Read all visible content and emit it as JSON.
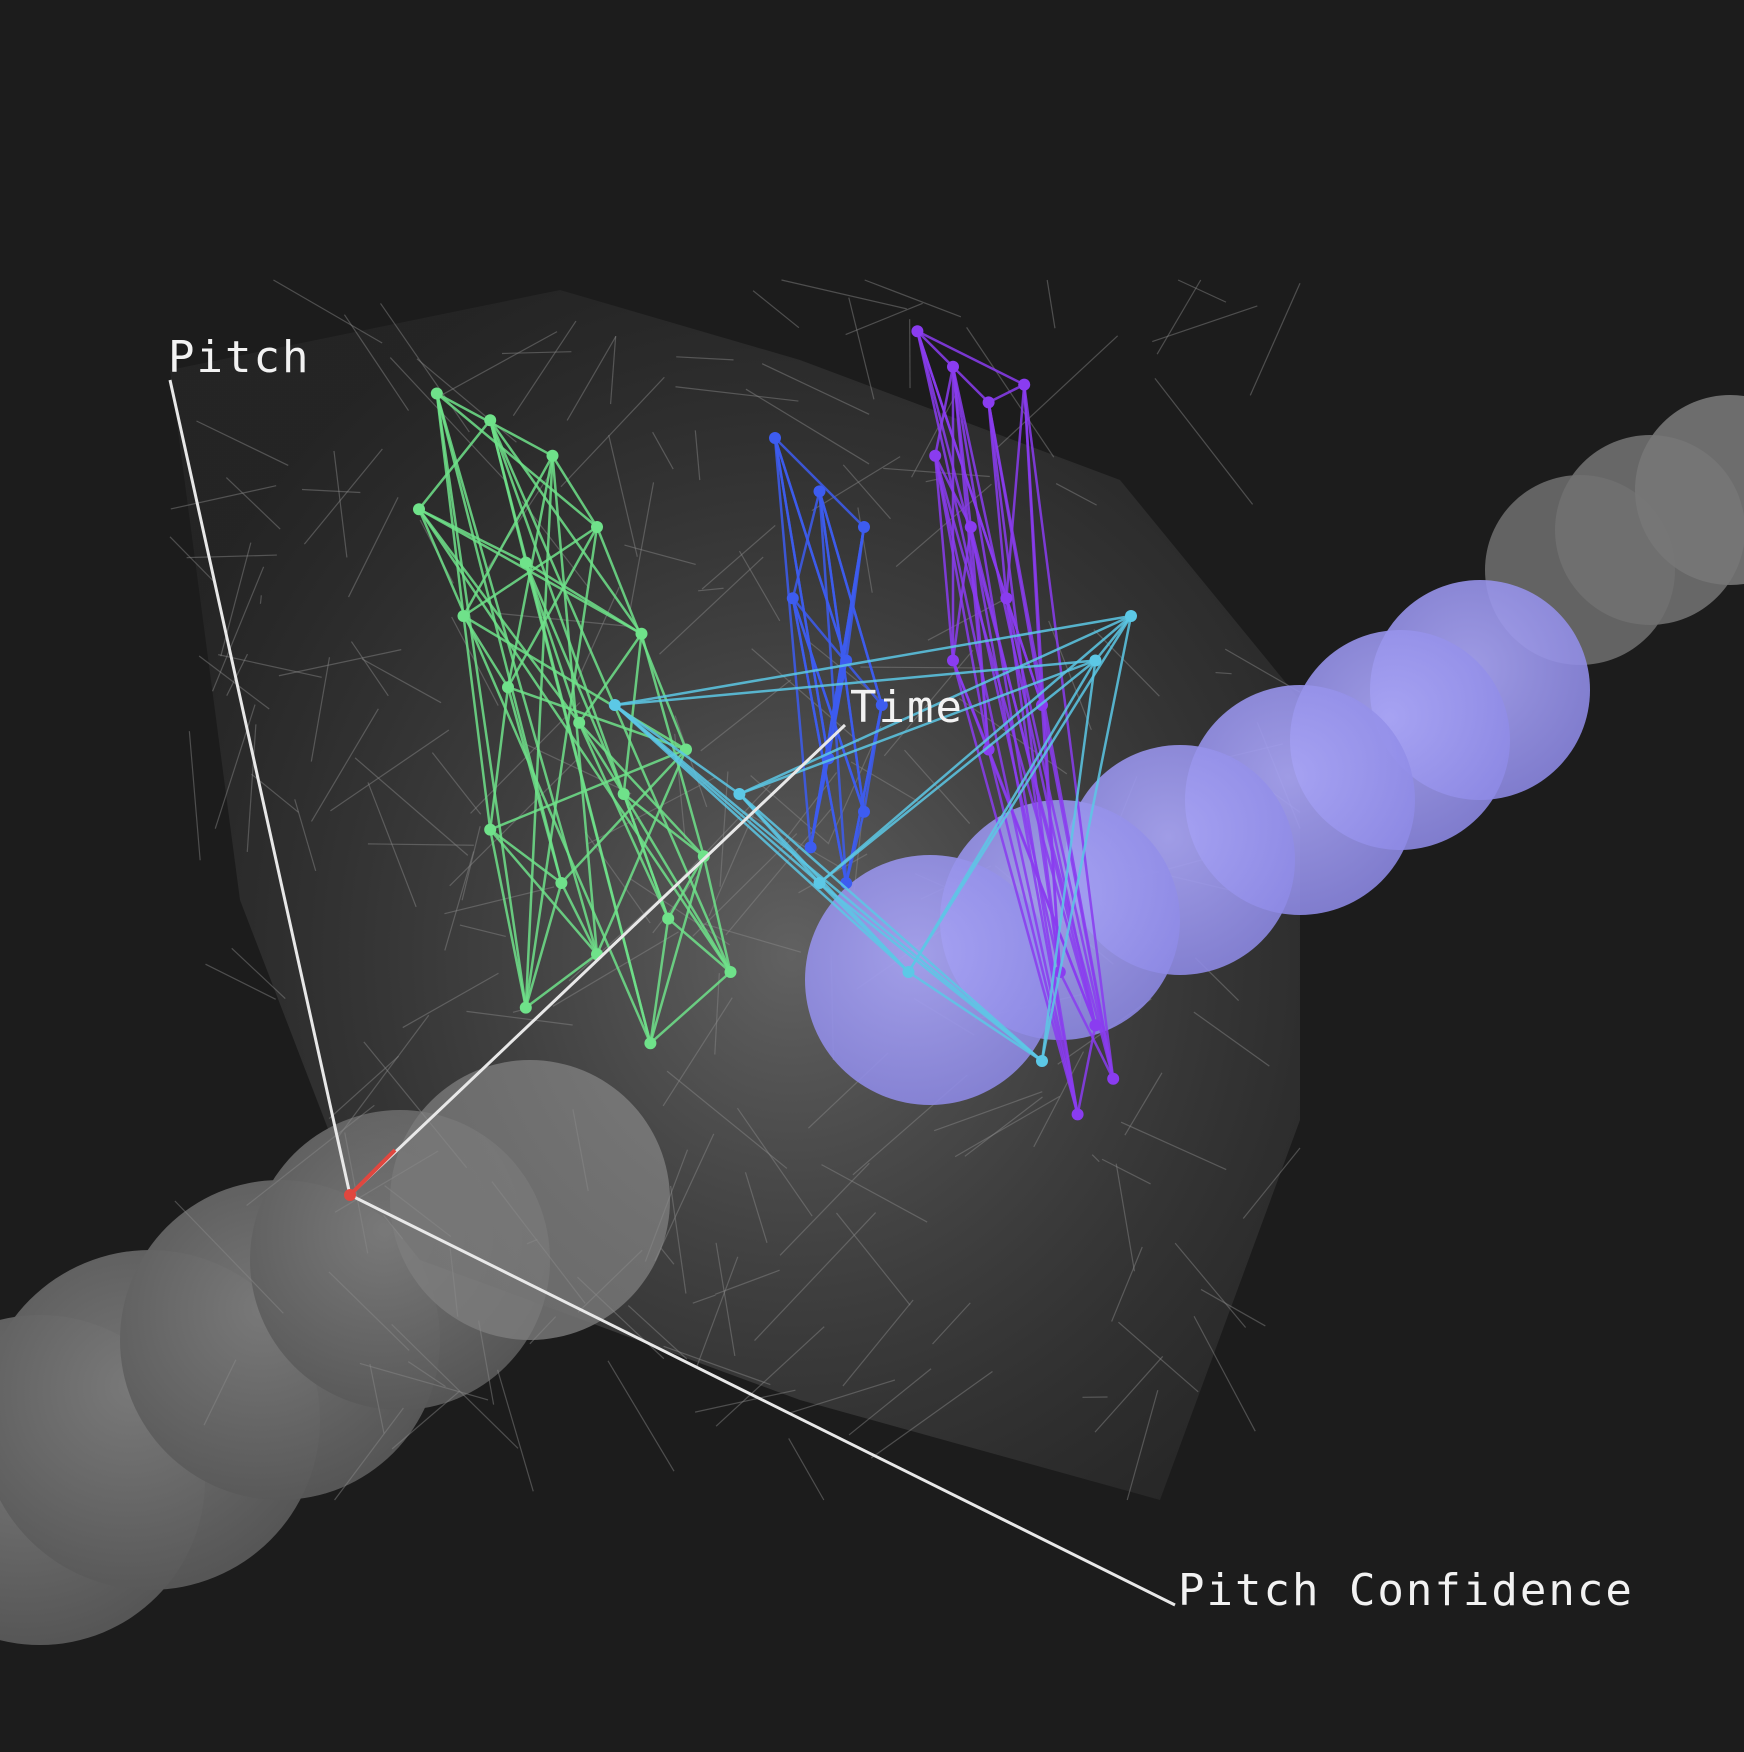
{
  "chart_data": {
    "type": "scatter",
    "title": "",
    "axes": {
      "y_label": "Pitch",
      "depth_label": "Time",
      "x_label": "Pitch Confidence"
    },
    "origin_marker_color": "#e0473f",
    "axis_color": "#e8e8e8",
    "background_color": "#1c1c1c",
    "series": [
      {
        "color": "#6fe28a",
        "points": [
          [
            0.12,
            0.85
          ],
          [
            0.18,
            0.82
          ],
          [
            0.25,
            0.78
          ],
          [
            0.1,
            0.72
          ],
          [
            0.3,
            0.7
          ],
          [
            0.22,
            0.66
          ],
          [
            0.15,
            0.6
          ],
          [
            0.35,
            0.58
          ],
          [
            0.2,
            0.52
          ],
          [
            0.28,
            0.48
          ],
          [
            0.4,
            0.45
          ],
          [
            0.33,
            0.4
          ],
          [
            0.18,
            0.36
          ],
          [
            0.42,
            0.33
          ],
          [
            0.26,
            0.3
          ],
          [
            0.38,
            0.26
          ],
          [
            0.3,
            0.22
          ],
          [
            0.45,
            0.2
          ],
          [
            0.22,
            0.16
          ],
          [
            0.36,
            0.12
          ]
        ]
      },
      {
        "color": "#3d5cf0",
        "points": [
          [
            0.5,
            0.8
          ],
          [
            0.55,
            0.74
          ],
          [
            0.6,
            0.7
          ],
          [
            0.52,
            0.62
          ],
          [
            0.58,
            0.55
          ],
          [
            0.62,
            0.5
          ],
          [
            0.56,
            0.44
          ],
          [
            0.6,
            0.38
          ],
          [
            0.54,
            0.34
          ],
          [
            0.58,
            0.3
          ]
        ]
      },
      {
        "color": "#8a3cf0",
        "points": [
          [
            0.66,
            0.92
          ],
          [
            0.7,
            0.88
          ],
          [
            0.74,
            0.84
          ],
          [
            0.68,
            0.78
          ],
          [
            0.78,
            0.86
          ],
          [
            0.72,
            0.7
          ],
          [
            0.76,
            0.62
          ],
          [
            0.7,
            0.55
          ],
          [
            0.8,
            0.5
          ],
          [
            0.74,
            0.45
          ],
          [
            0.82,
            0.2
          ],
          [
            0.86,
            0.14
          ],
          [
            0.88,
            0.08
          ],
          [
            0.84,
            0.04
          ]
        ]
      },
      {
        "color": "#5cc8e6",
        "points": [
          [
            0.32,
            0.5
          ],
          [
            0.46,
            0.4
          ],
          [
            0.55,
            0.3
          ],
          [
            0.65,
            0.2
          ],
          [
            0.8,
            0.1
          ],
          [
            0.86,
            0.55
          ],
          [
            0.9,
            0.6
          ]
        ]
      }
    ]
  }
}
